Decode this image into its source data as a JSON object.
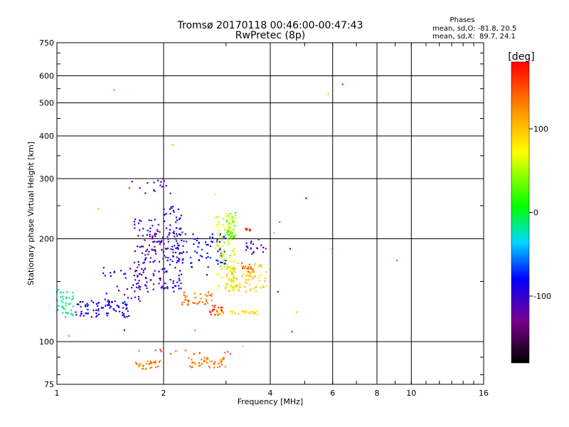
{
  "chart_data": {
    "type": "scatter",
    "title": "Tromsø 20170118 00:46:00-00:47:43",
    "subtitle": "RwPretec (8p)",
    "xlabel": "Frequency [MHz]",
    "ylabel": "Stationary phase Virtual Height [km]",
    "x_scale": "log",
    "y_scale": "log",
    "xlim": [
      1,
      16
    ],
    "ylim": [
      75,
      750
    ],
    "x_ticks": [
      1,
      2,
      4,
      6,
      8,
      10,
      16
    ],
    "y_ticks": [
      75,
      100,
      200,
      300,
      400,
      500,
      600,
      750
    ],
    "grid": true,
    "stats": {
      "heading": "Phases",
      "line_o": "mean, sd,O: -81.8, 20.5",
      "line_x": "mean, sd,X:  89.7, 24.1"
    },
    "colorbar": {
      "label": "[deg]",
      "range": [
        -180,
        180
      ],
      "ticks": [
        -100,
        0,
        100
      ]
    },
    "clusters": [
      {
        "name": "low-trace",
        "x": [
          1.0,
          1.12
        ],
        "y": [
          118,
          142
        ],
        "phase": -20,
        "count": 40
      },
      {
        "name": "low-trace-b",
        "x": [
          1.12,
          1.6
        ],
        "y": [
          118,
          132
        ],
        "phase": -90,
        "count": 80
      },
      {
        "name": "ramp",
        "x": [
          1.35,
          1.8
        ],
        "y": [
          130,
          165
        ],
        "phase": -105,
        "count": 40
      },
      {
        "name": "f1-rise",
        "x": [
          1.65,
          2.0
        ],
        "y": [
          140,
          230
        ],
        "phase": -110,
        "count": 120
      },
      {
        "name": "f2-column",
        "x": [
          2.0,
          2.25
        ],
        "y": [
          140,
          250
        ],
        "phase": -95,
        "count": 110
      },
      {
        "name": "f2-upper",
        "x": [
          1.6,
          2.1
        ],
        "y": [
          265,
          300
        ],
        "phase": -115,
        "count": 15
      },
      {
        "name": "mid-blue",
        "x": [
          2.25,
          3.0
        ],
        "y": [
          165,
          210
        ],
        "phase": -80,
        "count": 70
      },
      {
        "name": "mid-orange",
        "x": [
          2.2,
          2.75
        ],
        "y": [
          128,
          140
        ],
        "phase": 135,
        "count": 40
      },
      {
        "name": "mid-red",
        "x": [
          2.7,
          2.95
        ],
        "y": [
          118,
          128
        ],
        "phase": 160,
        "count": 20
      },
      {
        "name": "yellowgreen",
        "x": [
          2.8,
          3.2
        ],
        "y": [
          140,
          240
        ],
        "phase": 60,
        "count": 120
      },
      {
        "name": "green-top",
        "x": [
          3.0,
          3.2
        ],
        "y": [
          200,
          240
        ],
        "phase": 30,
        "count": 30
      },
      {
        "name": "yellow-band",
        "x": [
          3.0,
          3.9
        ],
        "y": [
          140,
          170
        ],
        "phase": 95,
        "count": 90
      },
      {
        "name": "yellow-line",
        "x": [
          2.8,
          3.7
        ],
        "y": [
          120,
          123
        ],
        "phase": 85,
        "count": 30
      },
      {
        "name": "orange-dots",
        "x": [
          3.3,
          3.6
        ],
        "y": [
          160,
          170
        ],
        "phase": 140,
        "count": 15
      },
      {
        "name": "red-top",
        "x": [
          3.4,
          3.6
        ],
        "y": [
          210,
          215
        ],
        "phase": 170,
        "count": 8
      },
      {
        "name": "blue-right",
        "x": [
          3.4,
          3.9
        ],
        "y": [
          180,
          200
        ],
        "phase": -110,
        "count": 20
      },
      {
        "name": "e-layer-a",
        "x": [
          1.65,
          1.98
        ],
        "y": [
          83,
          88
        ],
        "phase": 130,
        "count": 30
      },
      {
        "name": "e-layer-b",
        "x": [
          2.35,
          3.0
        ],
        "y": [
          84,
          90
        ],
        "phase": 130,
        "count": 45
      },
      {
        "name": "e-top",
        "x": [
          1.65,
          3.1
        ],
        "y": [
          92,
          95
        ],
        "phase": 150,
        "count": 12
      }
    ],
    "points": [
      {
        "x": 1.45,
        "y": 545,
        "phase": 10
      },
      {
        "x": 2.12,
        "y": 377,
        "phase": 110
      },
      {
        "x": 1.31,
        "y": 245,
        "phase": 100
      },
      {
        "x": 1.6,
        "y": 282,
        "phase": 160
      },
      {
        "x": 5.05,
        "y": 263,
        "phase": -110
      },
      {
        "x": 5.83,
        "y": 530,
        "phase": 100
      },
      {
        "x": 6.4,
        "y": 567,
        "phase": 170
      },
      {
        "x": 5.95,
        "y": 187,
        "phase": 90
      },
      {
        "x": 4.55,
        "y": 187,
        "phase": -110
      },
      {
        "x": 9.1,
        "y": 173,
        "phase": 140
      },
      {
        "x": 4.6,
        "y": 107,
        "phase": 170
      },
      {
        "x": 4.25,
        "y": 224,
        "phase": 145
      },
      {
        "x": 4.1,
        "y": 208,
        "phase": 110
      },
      {
        "x": 4.75,
        "y": 122,
        "phase": 100
      },
      {
        "x": 1.08,
        "y": 104,
        "phase": -10
      },
      {
        "x": 1.55,
        "y": 108,
        "phase": -110
      },
      {
        "x": 4.2,
        "y": 140,
        "phase": -115
      },
      {
        "x": 3.35,
        "y": 97,
        "phase": 90
      },
      {
        "x": 2.45,
        "y": 108,
        "phase": 130
      },
      {
        "x": 2.8,
        "y": 270,
        "phase": 80
      },
      {
        "x": 2.65,
        "y": 157,
        "phase": -100
      }
    ]
  }
}
